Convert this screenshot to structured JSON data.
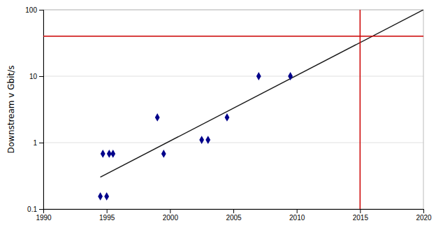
{
  "chart_data": {
    "type": "scatter",
    "ylabel": "Downstream v Gbit/s",
    "log": "y",
    "grid": "y",
    "xlim": [
      1990,
      2020
    ],
    "ylim": [
      0.1,
      100
    ],
    "xticks": [
      1990,
      1995,
      2000,
      2005,
      2010,
      2015,
      2020
    ],
    "yticks": [
      0.1,
      1,
      10,
      100
    ],
    "series": [
      {
        "type": "scatter",
        "marker": "diamond",
        "color": "#00008b",
        "x": [
          1994.5,
          1995.0,
          1994.7,
          1995.2,
          1995.5,
          1999.0,
          1999.5,
          2002.5,
          2003.0,
          2004.5,
          2007.0,
          2009.5
        ],
        "values": [
          0.155,
          0.155,
          0.68,
          0.68,
          0.68,
          2.4,
          0.68,
          1.1,
          1.1,
          2.4,
          10.0,
          10.0
        ]
      },
      {
        "type": "line",
        "line_style": "solid",
        "color": "#1a1a1a",
        "x": [
          1994.5,
          2020
        ],
        "values": [
          0.3019951720402016,
          100
        ]
      }
    ],
    "hlines": [
      {
        "value": 40,
        "color": "#cc0000"
      }
    ],
    "vlines": [
      {
        "value": 2015,
        "color": "#cc0000"
      }
    ]
  }
}
